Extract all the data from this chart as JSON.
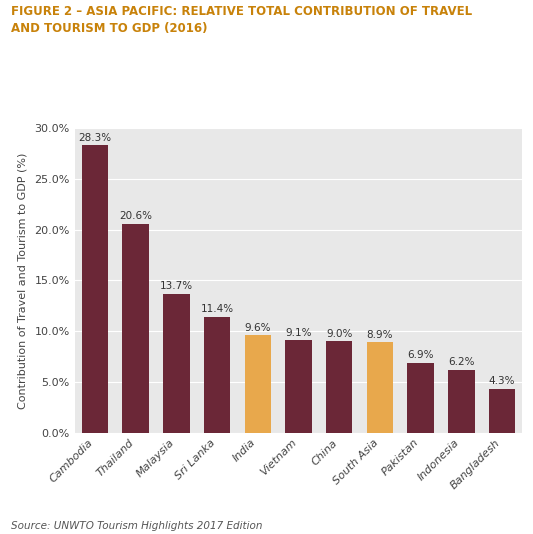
{
  "title_line1": "FIGURE 2 – ASIA PACIFIC: RELATIVE TOTAL CONTRIBUTION OF TRAVEL",
  "title_line2": "AND TOURISM TO GDP (2016)",
  "title_color": "#C8820A",
  "categories": [
    "Cambodia",
    "Thailand",
    "Malaysia",
    "Sri Lanka",
    "India",
    "Vietnam",
    "China",
    "South Asia",
    "Pakistan",
    "Indonesia",
    "Bangladesh"
  ],
  "values": [
    28.3,
    20.6,
    13.7,
    11.4,
    9.6,
    9.1,
    9.0,
    8.9,
    6.9,
    6.2,
    4.3
  ],
  "bar_colors": [
    "#6B2737",
    "#6B2737",
    "#6B2737",
    "#6B2737",
    "#E8A84C",
    "#6B2737",
    "#6B2737",
    "#E8A84C",
    "#6B2737",
    "#6B2737",
    "#6B2737"
  ],
  "ylabel": "Contribution of Travel and Tourism to GDP (%)",
  "ylim": [
    0,
    30
  ],
  "yticks": [
    0,
    5,
    10,
    15,
    20,
    25,
    30
  ],
  "ytick_labels": [
    "0.0%",
    "5.0%",
    "10.0%",
    "15.0%",
    "20.0%",
    "25.0%",
    "30.0%"
  ],
  "source_text": "Source: UNWTO Tourism Highlights 2017 Edition",
  "background_color": "#E8E8E8",
  "bar_label_fontsize": 7.5,
  "ylabel_fontsize": 8,
  "xlabel_fontsize": 8,
  "source_fontsize": 7.5,
  "title_fontsize": 8.5
}
